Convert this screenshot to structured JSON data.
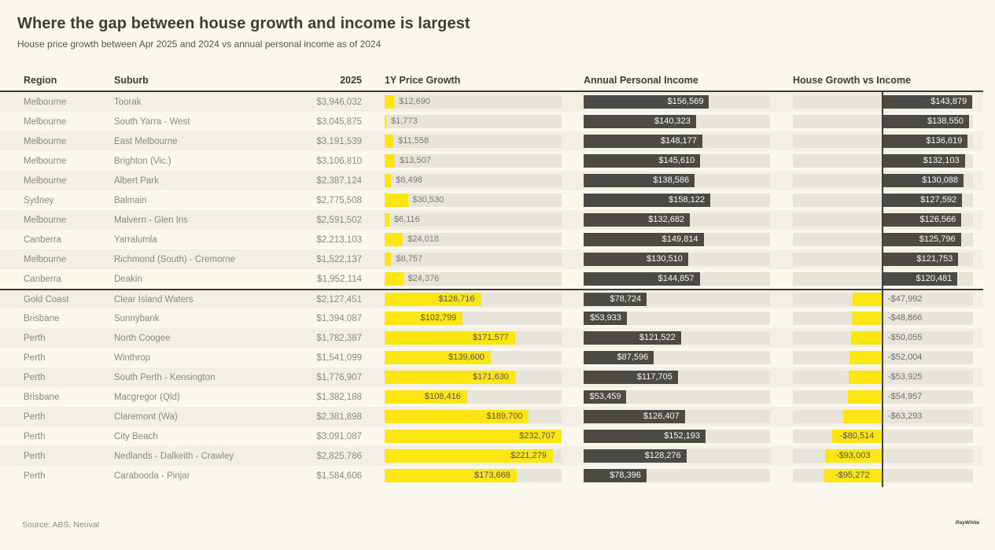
{
  "chart_data": {
    "type": "table",
    "title": "Where the gap between house growth and income is largest",
    "subtitle": "House price growth between Apr 2025 and 2024 vs annual personal income as of 2024",
    "columns": {
      "region": "Region",
      "suburb": "Suburb",
      "year": "2025",
      "growth": "1Y Price Growth",
      "income": "Annual Personal Income",
      "gap": "House Growth vs Income"
    },
    "scale": {
      "bar_max": 232707,
      "gap_max": 145000
    },
    "rows": [
      {
        "region": "Melbourne",
        "suburb": "Toorak",
        "price": "$3,946,032",
        "growth": 12690,
        "growth_label": "$12,690",
        "income": 156569,
        "income_label": "$156,569",
        "gap": 143879,
        "gap_label": "$143,879"
      },
      {
        "region": "Melbourne",
        "suburb": "South Yarra - West",
        "price": "$3,045,875",
        "growth": 1773,
        "growth_label": "$1,773",
        "income": 140323,
        "income_label": "$140,323",
        "gap": 138550,
        "gap_label": "$138,550"
      },
      {
        "region": "Melbourne",
        "suburb": "East Melbourne",
        "price": "$3,191,539",
        "growth": 11558,
        "growth_label": "$11,558",
        "income": 148177,
        "income_label": "$148,177",
        "gap": 136619,
        "gap_label": "$136,619"
      },
      {
        "region": "Melbourne",
        "suburb": "Brighton (Vic.)",
        "price": "$3,106,810",
        "growth": 13507,
        "growth_label": "$13,507",
        "income": 145610,
        "income_label": "$145,610",
        "gap": 132103,
        "gap_label": "$132,103"
      },
      {
        "region": "Melbourne",
        "suburb": "Albert Park",
        "price": "$2,387,124",
        "growth": 8498,
        "growth_label": "$8,498",
        "income": 138586,
        "income_label": "$138,586",
        "gap": 130088,
        "gap_label": "$130,088"
      },
      {
        "region": "Sydney",
        "suburb": "Balmain",
        "price": "$2,775,508",
        "growth": 30530,
        "growth_label": "$30,530",
        "income": 158122,
        "income_label": "$158,122",
        "gap": 127592,
        "gap_label": "$127,592"
      },
      {
        "region": "Melbourne",
        "suburb": "Malvern - Glen Iris",
        "price": "$2,591,502",
        "growth": 6116,
        "growth_label": "$6,116",
        "income": 132682,
        "income_label": "$132,682",
        "gap": 126566,
        "gap_label": "$126,566"
      },
      {
        "region": "Canberra",
        "suburb": "Yarralumla",
        "price": "$2,213,103",
        "growth": 24018,
        "growth_label": "$24,018",
        "income": 149814,
        "income_label": "$149,814",
        "gap": 125796,
        "gap_label": "$125,796"
      },
      {
        "region": "Melbourne",
        "suburb": "Richmond (South) - Cremorne",
        "price": "$1,522,137",
        "growth": 8757,
        "growth_label": "$8,757",
        "income": 130510,
        "income_label": "$130,510",
        "gap": 121753,
        "gap_label": "$121,753"
      },
      {
        "region": "Canberra",
        "suburb": "Deakin",
        "price": "$1,952,114",
        "growth": 24376,
        "growth_label": "$24,376",
        "income": 144857,
        "income_label": "$144,857",
        "gap": 120481,
        "gap_label": "$120,481"
      },
      {
        "region": "Gold Coast",
        "suburb": "Clear Island Waters",
        "price": "$2,127,451",
        "growth": 126716,
        "growth_label": "$126,716",
        "income": 78724,
        "income_label": "$78,724",
        "gap": -47992,
        "gap_label": "-$47,992"
      },
      {
        "region": "Brisbane",
        "suburb": "Sunnybank",
        "price": "$1,394,087",
        "growth": 102799,
        "growth_label": "$102,799",
        "income": 53933,
        "income_label": "$53,933",
        "gap": -48866,
        "gap_label": "-$48,866"
      },
      {
        "region": "Perth",
        "suburb": "North Coogee",
        "price": "$1,782,387",
        "growth": 171577,
        "growth_label": "$171,577",
        "income": 121522,
        "income_label": "$121,522",
        "gap": -50055,
        "gap_label": "-$50,055"
      },
      {
        "region": "Perth",
        "suburb": "Winthrop",
        "price": "$1,541,099",
        "growth": 139600,
        "growth_label": "$139,600",
        "income": 87596,
        "income_label": "$87,596",
        "gap": -52004,
        "gap_label": "-$52,004"
      },
      {
        "region": "Perth",
        "suburb": "South Perth - Kensington",
        "price": "$1,776,907",
        "growth": 171630,
        "growth_label": "$171,630",
        "income": 117705,
        "income_label": "$117,705",
        "gap": -53925,
        "gap_label": "-$53,925"
      },
      {
        "region": "Brisbane",
        "suburb": "Macgregor (Qld)",
        "price": "$1,382,188",
        "growth": 108416,
        "growth_label": "$108,416",
        "income": 53459,
        "income_label": "$53,459",
        "gap": -54957,
        "gap_label": "-$54,957"
      },
      {
        "region": "Perth",
        "suburb": "Claremont (Wa)",
        "price": "$2,381,898",
        "growth": 189700,
        "growth_label": "$189,700",
        "income": 126407,
        "income_label": "$126,407",
        "gap": -63293,
        "gap_label": "-$63,293"
      },
      {
        "region": "Perth",
        "suburb": "City Beach",
        "price": "$3,091,087",
        "growth": 232707,
        "growth_label": "$232,707",
        "income": 152193,
        "income_label": "$152,193",
        "gap": -80514,
        "gap_label": "-$80,514"
      },
      {
        "region": "Perth",
        "suburb": "Nedlands - Dalkeith - Crawley",
        "price": "$2,825,786",
        "growth": 221279,
        "growth_label": "$221,279",
        "income": 128276,
        "income_label": "$128,276",
        "gap": -93003,
        "gap_label": "-$93,003"
      },
      {
        "region": "Perth",
        "suburb": "Carabooda - Pinjar",
        "price": "$1,584,606",
        "growth": 173668,
        "growth_label": "$173,668",
        "income": 78396,
        "income_label": "$78,396",
        "gap": -95272,
        "gap_label": "-$95,272"
      }
    ]
  },
  "footer": {
    "source": "Source: ABS, Neoval",
    "logo": "RayWhite"
  },
  "colors": {
    "yellow": "#ffe512",
    "dark_bar": "#4b4a45",
    "background": "#faf7ed",
    "track": "#e7e4da",
    "label_on_yellow": "#55524a",
    "label_on_dark": "#f7f6f2",
    "label_outside": "#7d7b73"
  }
}
